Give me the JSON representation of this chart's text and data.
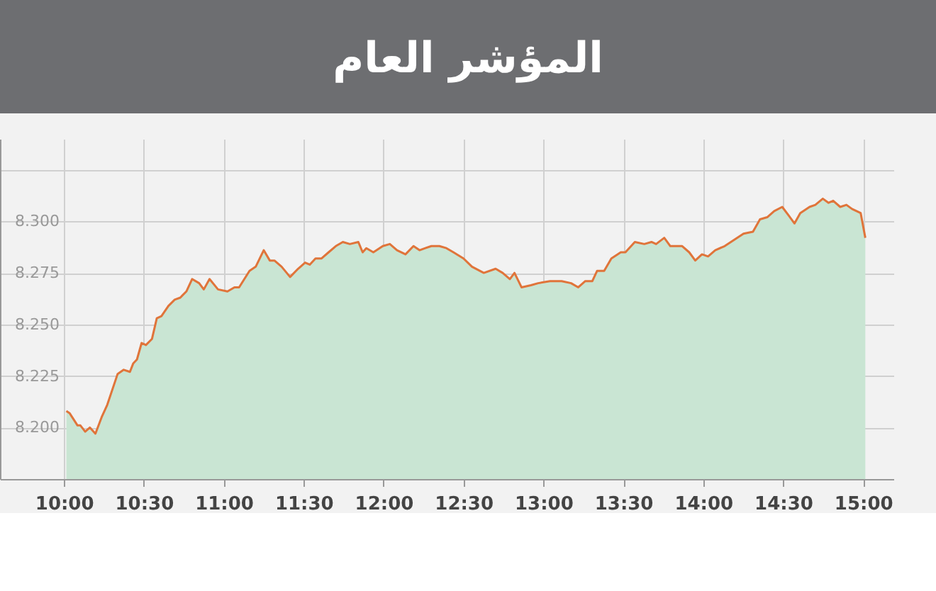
{
  "chart_data": {
    "type": "area",
    "title": "المؤشر العام",
    "xlim": [
      9.6,
      15.19
    ],
    "ylim": [
      8.175,
      8.34
    ],
    "xticks": [
      {
        "value": 10,
        "label": "10:00"
      },
      {
        "value": 10.5,
        "label": "10:30"
      },
      {
        "value": 11,
        "label": "11:00"
      },
      {
        "value": 11.5,
        "label": "11:30"
      },
      {
        "value": 12,
        "label": "12:00"
      },
      {
        "value": 12.5,
        "label": "12:30"
      },
      {
        "value": 13,
        "label": "13:00"
      },
      {
        "value": 13.5,
        "label": "13:30"
      },
      {
        "value": 14,
        "label": "14:00"
      },
      {
        "value": 14.5,
        "label": "14:30"
      },
      {
        "value": 15,
        "label": "15:00"
      }
    ],
    "yticks": [
      {
        "value": 8.2,
        "label": "8.200"
      },
      {
        "value": 8.225,
        "label": "8.225"
      },
      {
        "value": 8.25,
        "label": "8.250"
      },
      {
        "value": 8.275,
        "label": "8.275"
      },
      {
        "value": 8.3,
        "label": "8.300"
      },
      {
        "value": 8.325,
        "label": null
      }
    ],
    "grid": true,
    "series": [
      {
        "color": "#e0743a",
        "x": [
          10.015,
          10.035,
          10.085,
          10.103,
          10.133,
          10.162,
          10.197,
          10.236,
          10.271,
          10.336,
          10.374,
          10.413,
          10.433,
          10.457,
          10.486,
          10.513,
          10.551,
          10.581,
          10.61,
          10.654,
          10.693,
          10.728,
          10.766,
          10.802,
          10.846,
          10.875,
          10.911,
          10.964,
          11.023,
          11.067,
          11.096,
          11.161,
          11.2,
          11.25,
          11.288,
          11.317,
          11.362,
          11.415,
          11.465,
          11.509,
          11.538,
          11.574,
          11.612,
          11.656,
          11.701,
          11.745,
          11.789,
          11.842,
          11.869,
          11.892,
          11.936,
          11.995,
          12.039,
          12.084,
          12.137,
          12.187,
          12.225,
          12.261,
          12.299,
          12.349,
          12.393,
          12.437,
          12.5,
          12.553,
          12.627,
          12.701,
          12.745,
          12.79,
          12.819,
          12.863,
          12.922,
          12.967,
          13.041,
          13.114,
          13.173,
          13.218,
          13.262,
          13.306,
          13.336,
          13.38,
          13.425,
          13.484,
          13.513,
          13.572,
          13.631,
          13.676,
          13.705,
          13.756,
          13.794,
          13.868,
          13.912,
          13.95,
          13.992,
          14.03,
          14.075,
          14.134,
          14.193,
          14.252,
          14.311,
          14.355,
          14.4,
          14.444,
          14.494,
          14.533,
          14.571,
          14.607,
          14.665,
          14.701,
          14.748,
          14.784,
          14.813,
          14.857,
          14.896,
          14.931,
          14.985,
          15.014
        ],
        "values": [
          8.208,
          8.207,
          8.201,
          8.201,
          8.198,
          8.2,
          8.197,
          8.205,
          8.211,
          8.226,
          8.228,
          8.227,
          8.231,
          8.233,
          8.241,
          8.24,
          8.243,
          8.253,
          8.254,
          8.259,
          8.262,
          8.263,
          8.266,
          8.272,
          8.27,
          8.267,
          8.272,
          8.267,
          8.266,
          8.268,
          8.268,
          8.276,
          8.278,
          8.286,
          8.281,
          8.281,
          8.278,
          8.273,
          8.277,
          8.28,
          8.279,
          8.282,
          8.282,
          8.285,
          8.288,
          8.29,
          8.289,
          8.29,
          8.285,
          8.287,
          8.285,
          8.288,
          8.289,
          8.286,
          8.284,
          8.288,
          8.286,
          8.287,
          8.288,
          8.288,
          8.287,
          8.285,
          8.282,
          8.278,
          8.275,
          8.277,
          8.275,
          8.272,
          8.275,
          8.268,
          8.269,
          8.27,
          8.271,
          8.271,
          8.27,
          8.268,
          8.271,
          8.271,
          8.276,
          8.276,
          8.282,
          8.285,
          8.285,
          8.29,
          8.289,
          8.29,
          8.289,
          8.292,
          8.288,
          8.288,
          8.285,
          8.281,
          8.284,
          8.283,
          8.286,
          8.288,
          8.291,
          8.294,
          8.295,
          8.301,
          8.302,
          8.305,
          8.307,
          8.303,
          8.299,
          8.304,
          8.307,
          8.308,
          8.311,
          8.309,
          8.31,
          8.307,
          8.308,
          8.306,
          8.304,
          8.292
        ]
      }
    ]
  }
}
